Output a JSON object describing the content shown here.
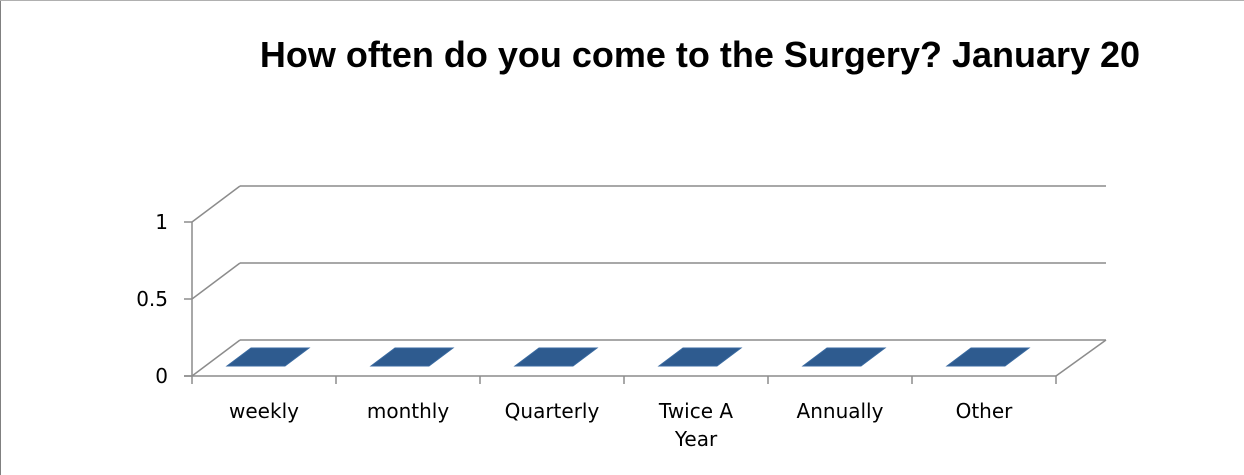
{
  "chart_data": {
    "type": "bar",
    "title": "How often do you come to the Surgery? January 20",
    "categories": [
      "weekly",
      "monthly",
      "Quarterly",
      "Twice A Year",
      "Annually",
      "Other"
    ],
    "series": [
      {
        "values": [
          0,
          0,
          0,
          0,
          0,
          0
        ]
      }
    ],
    "y_ticks": [
      "0",
      "0.5",
      "1"
    ],
    "ylim": [
      0,
      1
    ],
    "grid": true,
    "three_d": true,
    "bar_color": "#2e5b8f",
    "grid_color": "#8c8c8c",
    "xlabel": "",
    "ylabel": ""
  }
}
